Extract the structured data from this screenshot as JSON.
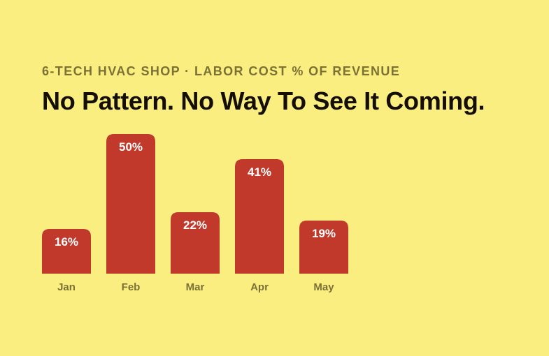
{
  "header": {
    "subtitle": "6-TECH HVAC SHOP · LABOR COST % OF REVENUE",
    "title": "No Pattern. No Way To See It Coming."
  },
  "colors": {
    "background": "#f9ee7f",
    "bar": "#c0392b",
    "bar_label": "#ffffff",
    "category_label": "#7b7135",
    "title": "#140e05"
  },
  "chart_data": {
    "type": "bar",
    "title": "No Pattern. No Way To See It Coming.",
    "subtitle": "6-TECH HVAC SHOP · LABOR COST % OF REVENUE",
    "categories": [
      "Jan",
      "Feb",
      "Mar",
      "Apr",
      "May"
    ],
    "values": [
      16,
      50,
      22,
      41,
      19
    ],
    "value_labels": [
      "16%",
      "50%",
      "22%",
      "41%",
      "19%"
    ],
    "xlabel": "",
    "ylabel": "",
    "ylim": [
      0,
      50
    ],
    "grid": false,
    "legend": "none"
  }
}
